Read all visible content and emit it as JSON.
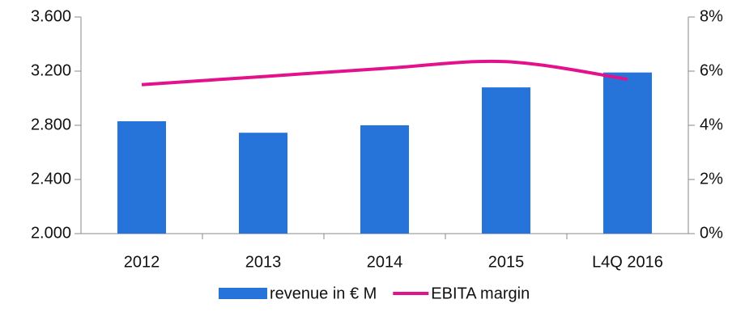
{
  "chart_data": {
    "type": "bar-line",
    "categories": [
      "2012",
      "2013",
      "2014",
      "2015",
      "L4Q 2016"
    ],
    "series": [
      {
        "name": "revenue in € M",
        "type": "bar",
        "color": "#2673d9",
        "values": [
          2830,
          2745,
          2800,
          3080,
          3190
        ]
      },
      {
        "name": "EBITA margin",
        "type": "line",
        "axis": "y2",
        "color": "#e3128c",
        "values": [
          5.5,
          5.8,
          6.1,
          6.35,
          5.7
        ]
      }
    ],
    "ylim": [
      2000,
      3600
    ],
    "yticks": [
      {
        "value": 2000,
        "label": "2.000"
      },
      {
        "value": 2400,
        "label": "2.400"
      },
      {
        "value": 2800,
        "label": "2.800"
      },
      {
        "value": 3200,
        "label": "3.200"
      },
      {
        "value": 3600,
        "label": "3.600"
      }
    ],
    "y2lim": [
      0,
      8
    ],
    "y2ticks": [
      {
        "value": 0,
        "label": "0%"
      },
      {
        "value": 2,
        "label": "2%"
      },
      {
        "value": 4,
        "label": "4%"
      },
      {
        "value": 6,
        "label": "6%"
      },
      {
        "value": 8,
        "label": "8%"
      }
    ],
    "legend": "bottom"
  }
}
